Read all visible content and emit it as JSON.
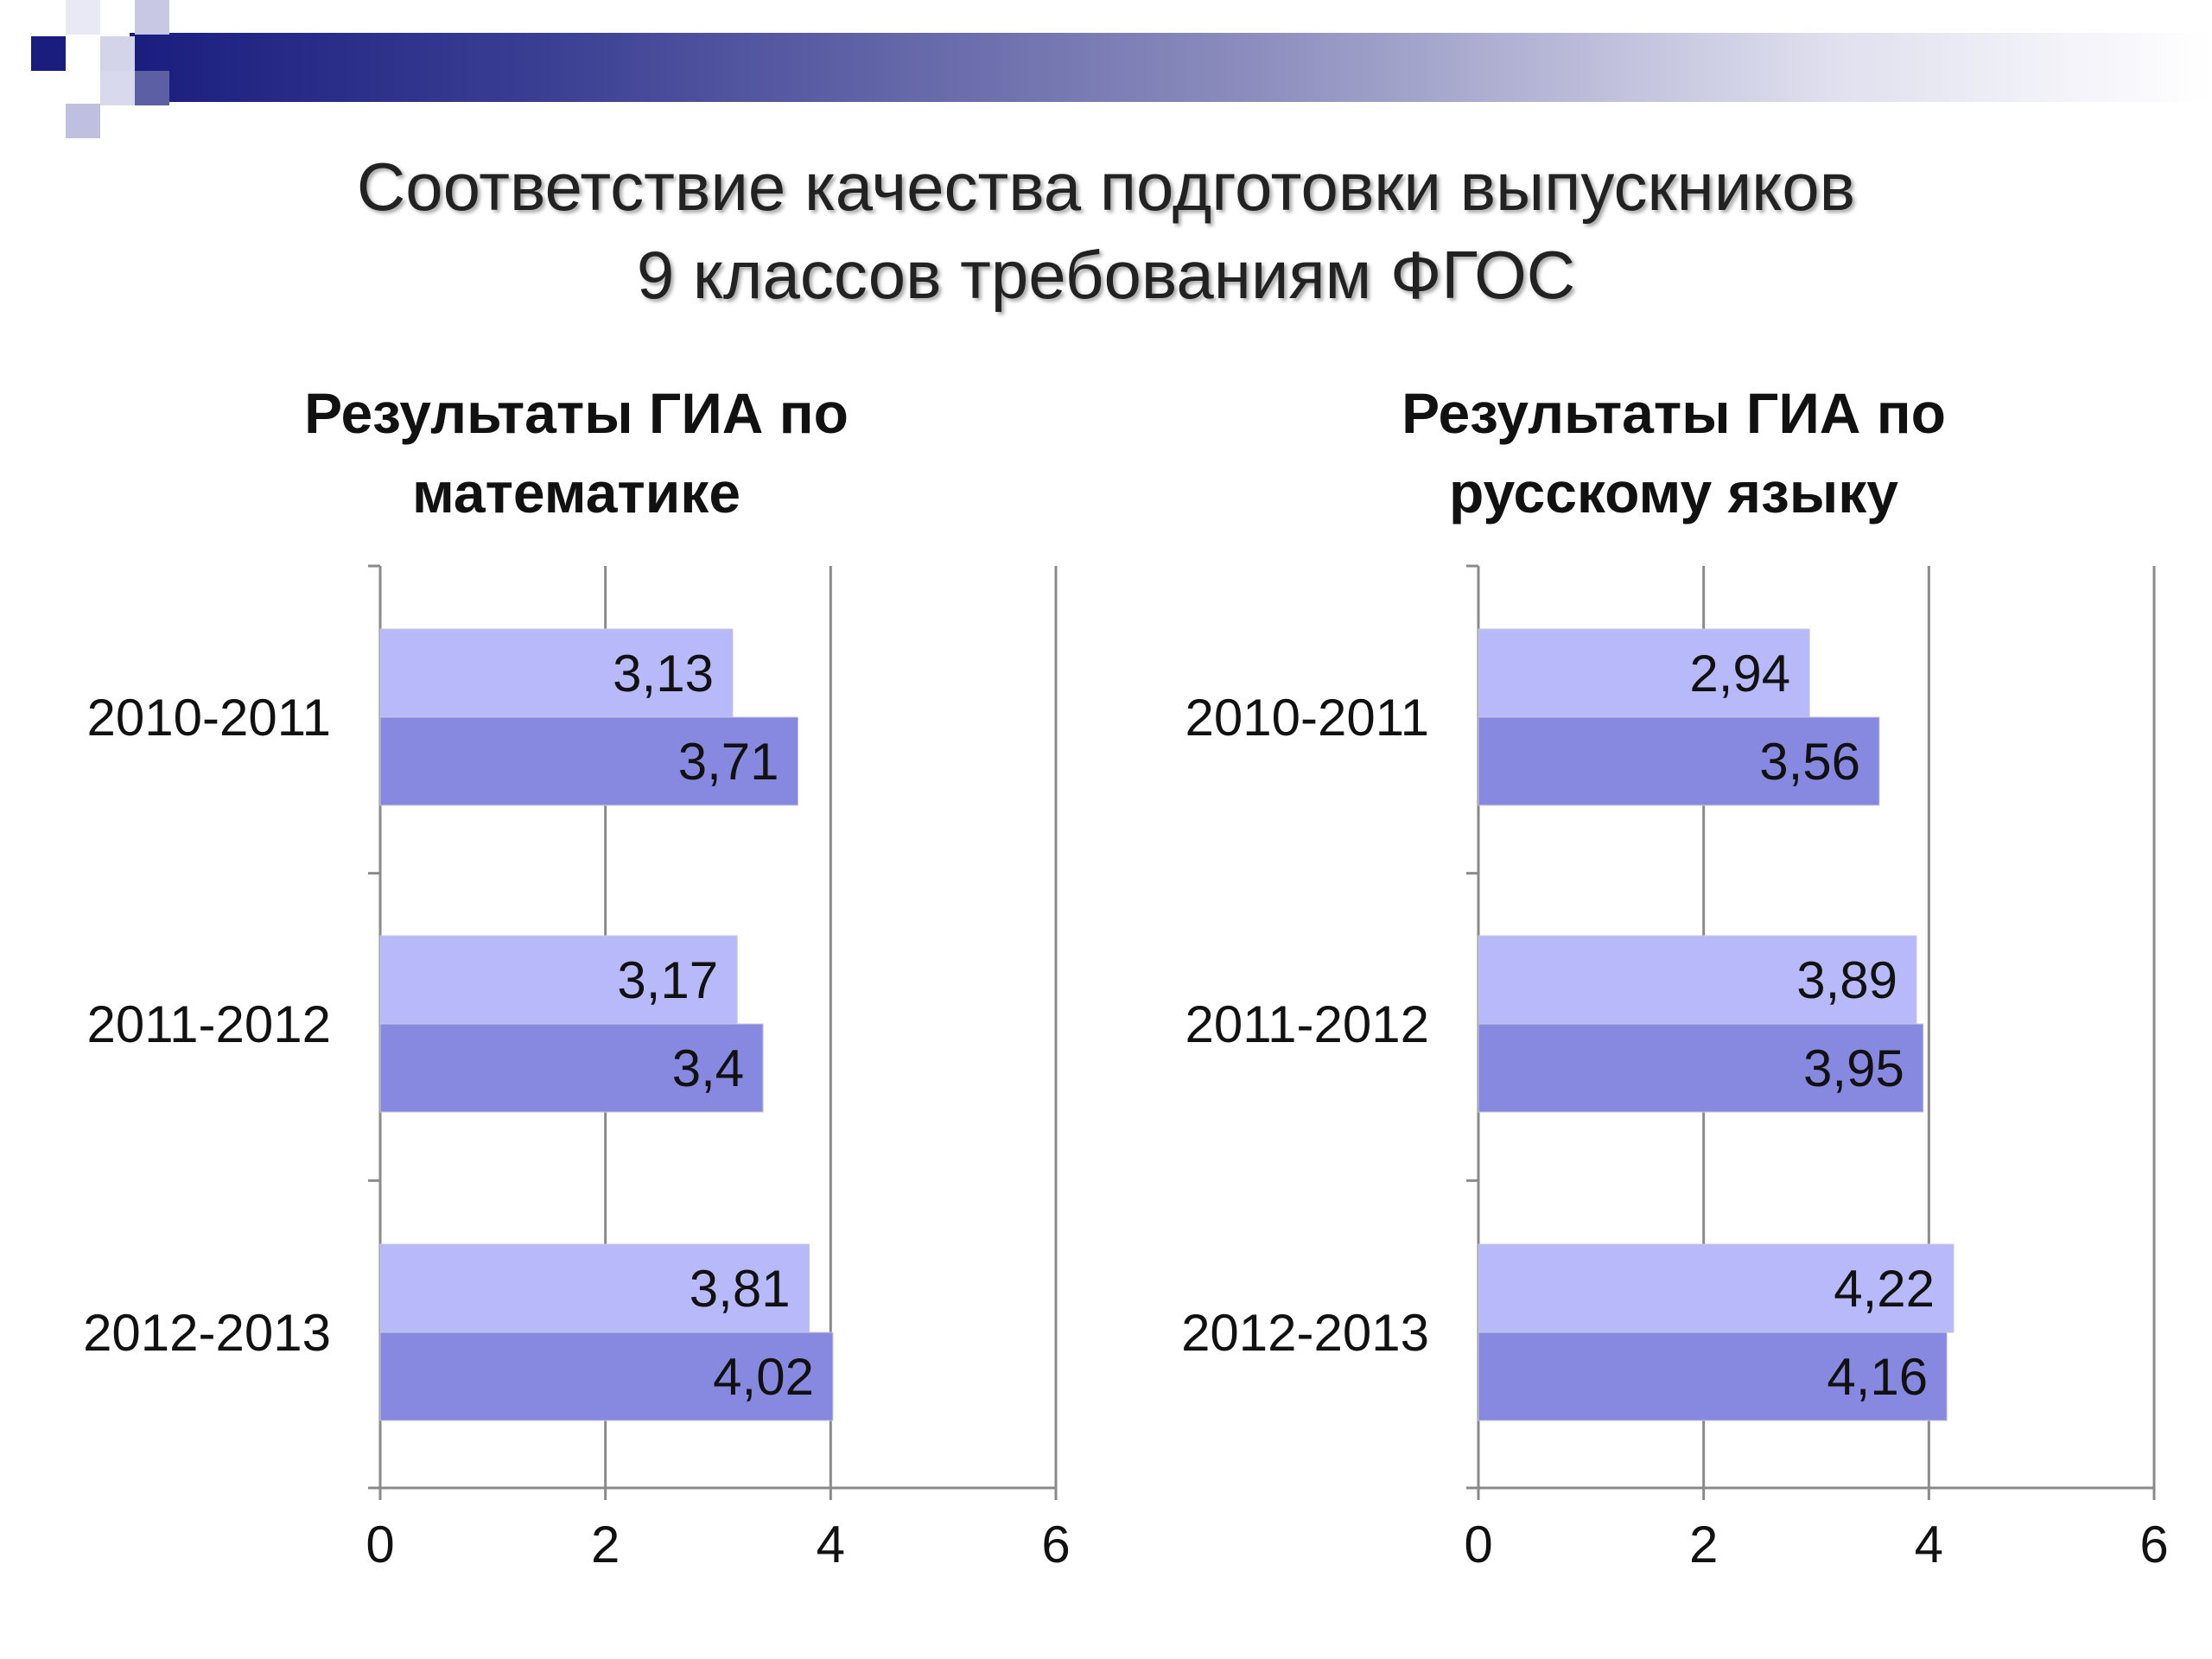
{
  "slide": {
    "title_line1": "Соответствие качества подготовки выпускников",
    "title_line2": "9 классов требованиям ФГОС"
  },
  "colors": {
    "header_dark": "#1a1d7e",
    "bar_light": "#b8b9fb",
    "bar_dark": "#8788e0"
  },
  "chart_data": [
    {
      "type": "bar",
      "orientation": "horizontal",
      "title": "Результаты ГИА по математике",
      "title_lines": [
        "Результаты ГИА по",
        "математике"
      ],
      "categories": [
        "2010-2011",
        "2011-2012",
        "2012-2013"
      ],
      "series": [
        {
          "values": [
            3.13,
            3.17,
            3.81
          ],
          "labels": [
            "3,13",
            "3,17",
            "3,81"
          ],
          "color": "#b8b9fb"
        },
        {
          "values": [
            3.71,
            3.4,
            4.02
          ],
          "labels": [
            "3,71",
            "3,4",
            "4,02"
          ],
          "color": "#8788e0"
        }
      ],
      "xlim": [
        0,
        6
      ],
      "xticks": [
        0,
        2,
        4,
        6
      ],
      "grid": true
    },
    {
      "type": "bar",
      "orientation": "horizontal",
      "title": "Результаты ГИА по русскому языку",
      "title_lines": [
        "Результаты ГИА по",
        "русскому языку"
      ],
      "categories": [
        "2010-2011",
        "2011-2012",
        "2012-2013"
      ],
      "series": [
        {
          "values": [
            2.94,
            3.89,
            4.22
          ],
          "labels": [
            "2,94",
            "3,89",
            "4,22"
          ],
          "color": "#b8b9fb"
        },
        {
          "values": [
            3.56,
            3.95,
            4.16
          ],
          "labels": [
            "3,56",
            "3,95",
            "4,16"
          ],
          "color": "#8788e0"
        }
      ],
      "xlim": [
        0,
        6
      ],
      "xticks": [
        0,
        2,
        4,
        6
      ],
      "grid": true
    }
  ]
}
